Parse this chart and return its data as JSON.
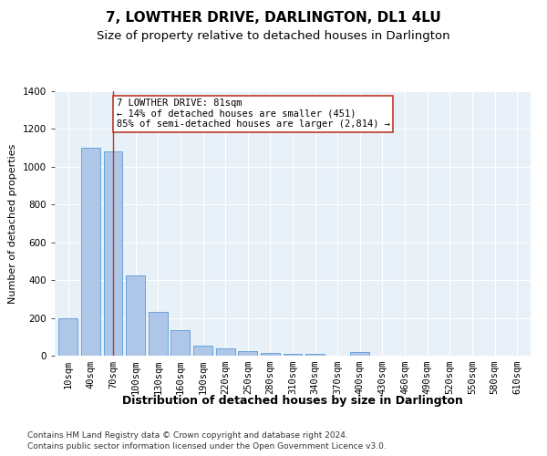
{
  "title": "7, LOWTHER DRIVE, DARLINGTON, DL1 4LU",
  "subtitle": "Size of property relative to detached houses in Darlington",
  "xlabel": "Distribution of detached houses by size in Darlington",
  "ylabel": "Number of detached properties",
  "categories": [
    "10sqm",
    "40sqm",
    "70sqm",
    "100sqm",
    "130sqm",
    "160sqm",
    "190sqm",
    "220sqm",
    "250sqm",
    "280sqm",
    "310sqm",
    "340sqm",
    "370sqm",
    "400sqm",
    "430sqm",
    "460sqm",
    "490sqm",
    "520sqm",
    "550sqm",
    "580sqm",
    "610sqm"
  ],
  "values": [
    200,
    1100,
    1080,
    425,
    230,
    135,
    55,
    40,
    22,
    15,
    12,
    10,
    0,
    20,
    0,
    0,
    0,
    0,
    0,
    0,
    0
  ],
  "bar_color": "#aec6e8",
  "bar_edge_color": "#5b9bd5",
  "vline_x_index": 2,
  "vline_color": "#c0392b",
  "annotation_text": "7 LOWTHER DRIVE: 81sqm\n← 14% of detached houses are smaller (451)\n85% of semi-detached houses are larger (2,814) →",
  "annotation_box_color": "#ffffff",
  "annotation_box_edge": "#c0392b",
  "ylim": [
    0,
    1400
  ],
  "yticks": [
    0,
    200,
    400,
    600,
    800,
    1000,
    1200,
    1400
  ],
  "background_color": "#e8f0f8",
  "footer_line1": "Contains HM Land Registry data © Crown copyright and database right 2024.",
  "footer_line2": "Contains public sector information licensed under the Open Government Licence v3.0.",
  "title_fontsize": 11,
  "subtitle_fontsize": 9.5,
  "xlabel_fontsize": 9,
  "ylabel_fontsize": 8,
  "tick_fontsize": 7.5,
  "footer_fontsize": 6.5
}
